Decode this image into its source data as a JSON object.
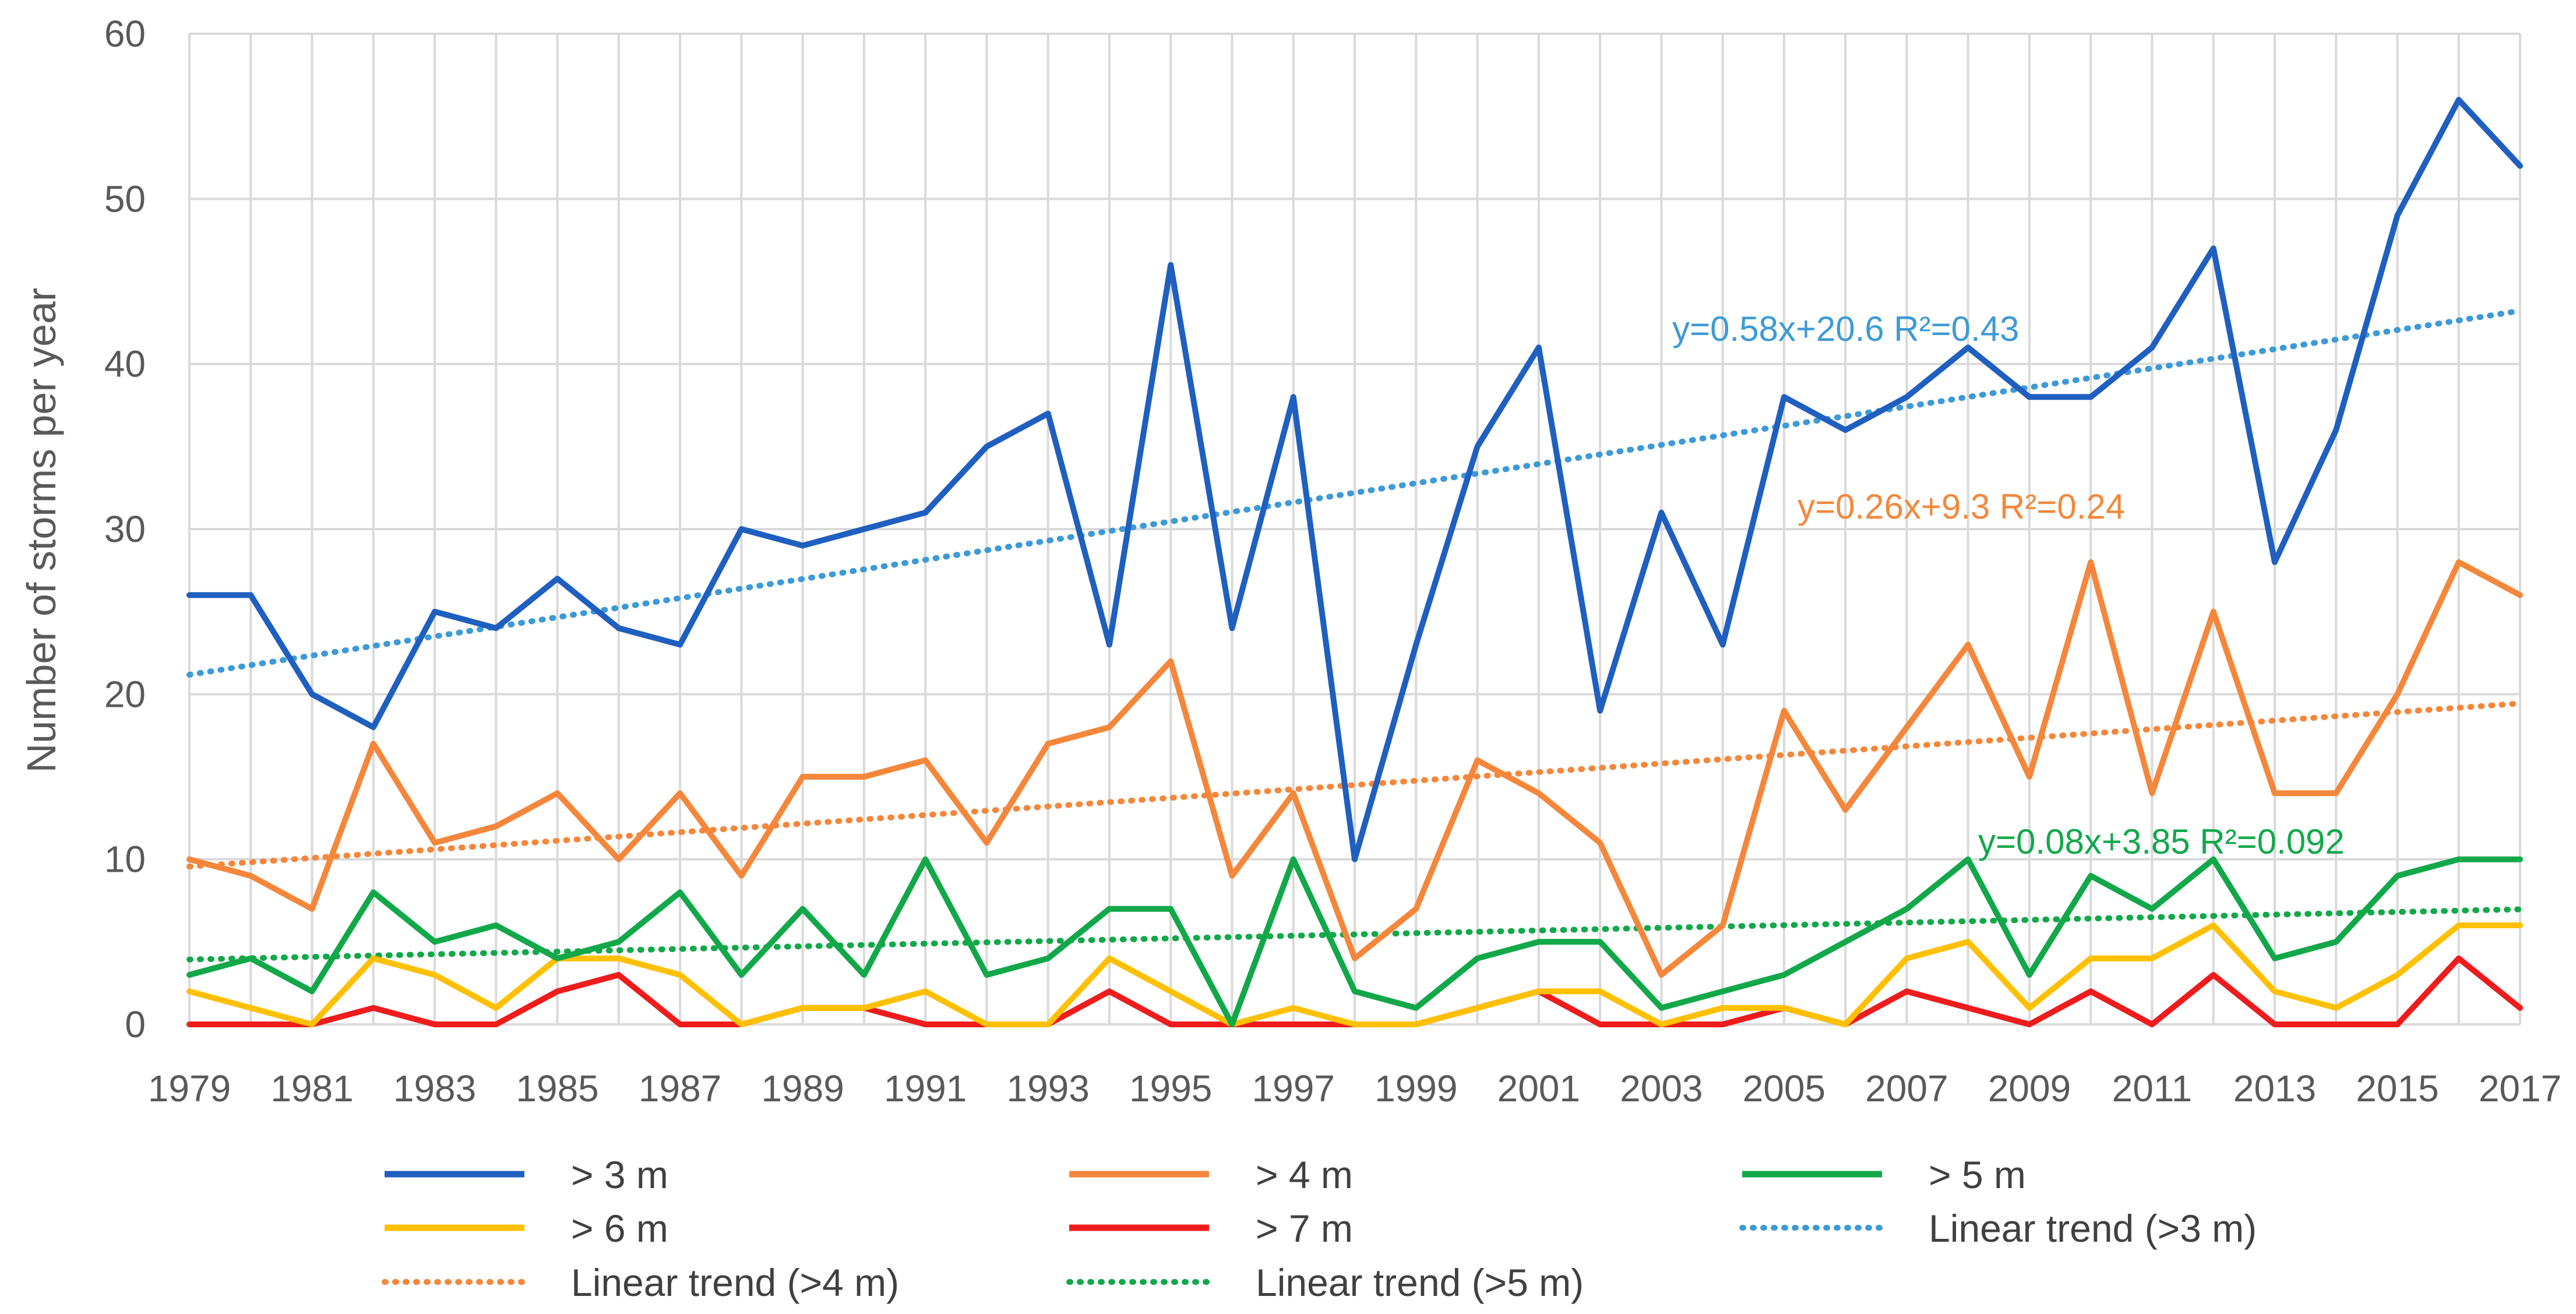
{
  "chart_data": {
    "type": "line",
    "title": "",
    "xlabel": "",
    "ylabel": "Number of storms per year",
    "xlim": [
      1979,
      2017
    ],
    "ylim": [
      0,
      60
    ],
    "y_ticks": [
      0,
      10,
      20,
      30,
      40,
      50,
      60
    ],
    "x_ticks": [
      1979,
      1981,
      1983,
      1985,
      1987,
      1989,
      1991,
      1993,
      1995,
      1997,
      1999,
      2001,
      2003,
      2005,
      2007,
      2009,
      2011,
      2013,
      2015,
      2017
    ],
    "x": [
      1979,
      1980,
      1981,
      1982,
      1983,
      1984,
      1985,
      1986,
      1987,
      1988,
      1989,
      1990,
      1991,
      1992,
      1993,
      1994,
      1995,
      1996,
      1997,
      1998,
      1999,
      2000,
      2001,
      2002,
      2003,
      2004,
      2005,
      2006,
      2007,
      2008,
      2009,
      2010,
      2011,
      2012,
      2013,
      2014,
      2015,
      2016,
      2017
    ],
    "grid": true,
    "series": [
      {
        "name": "> 3 m",
        "color": "#1f5fbf",
        "values": [
          26,
          26,
          20,
          18,
          25,
          24,
          27,
          24,
          23,
          30,
          29,
          30,
          31,
          35,
          37,
          23,
          46,
          24,
          38,
          10,
          23,
          35,
          41,
          19,
          31,
          23,
          38,
          36,
          38,
          41,
          38,
          38,
          41,
          47,
          28,
          36,
          49,
          56,
          52
        ]
      },
      {
        "name": "> 4 m",
        "color": "#f4873b",
        "values": [
          10,
          9,
          7,
          17,
          11,
          12,
          14,
          10,
          14,
          9,
          15,
          15,
          16,
          11,
          17,
          18,
          22,
          9,
          14,
          4,
          7,
          16,
          14,
          11,
          3,
          6,
          19,
          13,
          18,
          23,
          15,
          28,
          14,
          25,
          14,
          14,
          20,
          28,
          26
        ]
      },
      {
        "name": "> 5 m",
        "color": "#12a84a",
        "values": [
          3,
          4,
          2,
          8,
          5,
          6,
          4,
          5,
          8,
          3,
          7,
          3,
          10,
          3,
          4,
          7,
          7,
          0,
          10,
          2,
          1,
          4,
          5,
          5,
          1,
          2,
          3,
          5,
          7,
          10,
          3,
          9,
          7,
          10,
          4,
          5,
          9,
          10,
          10
        ]
      },
      {
        "name": "> 6 m",
        "color": "#ffc000",
        "values": [
          2,
          1,
          0,
          4,
          3,
          1,
          4,
          4,
          3,
          0,
          1,
          1,
          2,
          0,
          0,
          4,
          2,
          0,
          1,
          0,
          0,
          1,
          2,
          2,
          0,
          1,
          1,
          0,
          4,
          5,
          1,
          4,
          4,
          6,
          2,
          1,
          3,
          6,
          6
        ]
      },
      {
        "name": "> 7 m",
        "color": "#ee1c1c",
        "values": [
          0,
          0,
          0,
          1,
          0,
          0,
          2,
          3,
          0,
          0,
          1,
          1,
          0,
          0,
          0,
          2,
          0,
          0,
          0,
          0,
          0,
          1,
          2,
          0,
          0,
          0,
          1,
          0,
          2,
          1,
          0,
          2,
          0,
          3,
          0,
          0,
          0,
          4,
          1
        ]
      }
    ],
    "trends": [
      {
        "name": "Linear trend (>3 m)",
        "color": "#3d9ad6",
        "slope": 0.58,
        "intercept": 20.6,
        "label": "y=0.58x+20.6  R²=0.43"
      },
      {
        "name": "Linear trend (>4 m)",
        "color": "#f4873b",
        "slope": 0.26,
        "intercept": 9.3,
        "label": "y=0.26x+9.3  R²=0.24"
      },
      {
        "name": "Linear trend (>5 m)",
        "color": "#12a84a",
        "slope": 0.08,
        "intercept": 3.85,
        "label": "y=0.08x+3.85  R²=0.092"
      }
    ],
    "legend": {
      "position": "bottom",
      "items": [
        {
          "label": "> 3 m",
          "color": "#1f5fbf",
          "style": "solid"
        },
        {
          "label": "> 4 m",
          "color": "#f4873b",
          "style": "solid"
        },
        {
          "label": "> 5 m",
          "color": "#12a84a",
          "style": "solid"
        },
        {
          "label": "> 6 m",
          "color": "#ffc000",
          "style": "solid"
        },
        {
          "label": "> 7 m",
          "color": "#ee1c1c",
          "style": "solid"
        },
        {
          "label": "Linear trend (>3 m)",
          "color": "#3d9ad6",
          "style": "dotted"
        },
        {
          "label": "Linear trend (>4 m)",
          "color": "#f4873b",
          "style": "dotted"
        },
        {
          "label": "Linear trend (>5 m)",
          "color": "#12a84a",
          "style": "dotted"
        }
      ]
    }
  }
}
